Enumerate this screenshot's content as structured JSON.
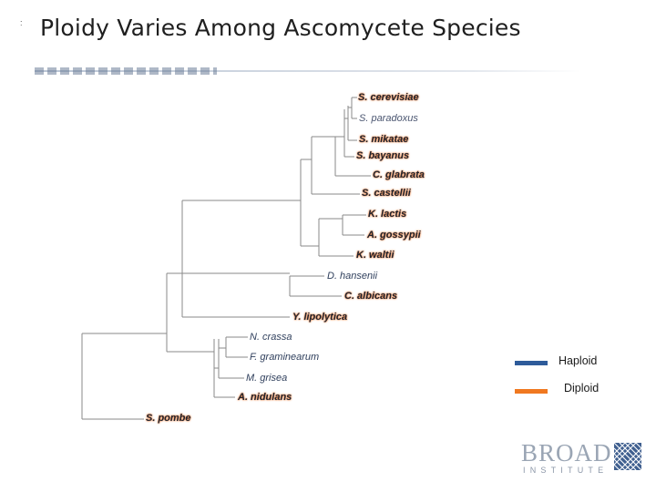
{
  "slide": {
    "marker": ":",
    "title": "Ploidy Varies Among Ascomycete Species"
  },
  "colors": {
    "haploid": "#2e5b9a",
    "diploid": "#f07820",
    "branch": "#8a8a8a"
  },
  "taxa": [
    {
      "id": "s-cerevisiae",
      "label": "S. cerevisiae",
      "ploidy": "diploid"
    },
    {
      "id": "s-paradoxus",
      "label": "S. paradoxus",
      "ploidy": "mixed"
    },
    {
      "id": "s-mikatae",
      "label": "S. mikatae",
      "ploidy": "diploid"
    },
    {
      "id": "s-bayanus",
      "label": "S. bayanus",
      "ploidy": "diploid"
    },
    {
      "id": "c-glabrata",
      "label": "C. glabrata",
      "ploidy": "diploid"
    },
    {
      "id": "s-castellii",
      "label": "S. castellii",
      "ploidy": "diploid"
    },
    {
      "id": "k-lactis",
      "label": "K. lactis",
      "ploidy": "diploid"
    },
    {
      "id": "a-gossypii",
      "label": "A. gossypii",
      "ploidy": "diploid"
    },
    {
      "id": "k-waltii",
      "label": "K. waltii",
      "ploidy": "diploid"
    },
    {
      "id": "d-hansenii",
      "label": "D. hansenii",
      "ploidy": "haploid"
    },
    {
      "id": "c-albicans",
      "label": "C. albicans",
      "ploidy": "diploid"
    },
    {
      "id": "y-lipolytica",
      "label": "Y. lipolytica",
      "ploidy": "diploid"
    },
    {
      "id": "n-crassa",
      "label": "N. crassa",
      "ploidy": "haploid"
    },
    {
      "id": "f-graminearum",
      "label": "F. graminearum",
      "ploidy": "haploid"
    },
    {
      "id": "m-grisea",
      "label": "M. grisea",
      "ploidy": "haploid"
    },
    {
      "id": "a-nidulans",
      "label": "A. nidulans",
      "ploidy": "diploid"
    },
    {
      "id": "s-pombe",
      "label": "S. pombe",
      "ploidy": "diploid"
    }
  ],
  "legend": {
    "haploid_label": "Haploid",
    "diploid_label": "Diploid"
  },
  "logo": {
    "word": "BROAD",
    "sub": "INSTITUTE"
  }
}
